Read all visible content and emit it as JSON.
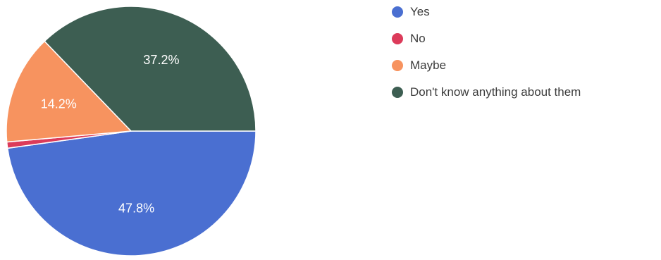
{
  "chart_data": {
    "type": "pie",
    "title": "",
    "legend_position": "right",
    "slices": [
      {
        "label": "Yes",
        "value": 47.8,
        "display": "47.8%",
        "color": "#4a6fd1"
      },
      {
        "label": "No",
        "value": 0.8,
        "display": "",
        "color": "#dc3b5a"
      },
      {
        "label": "Maybe",
        "value": 14.2,
        "display": "14.2%",
        "color": "#f7935f"
      },
      {
        "label": "Don't know anything about them",
        "value": 37.2,
        "display": "37.2%",
        "color": "#3d5e52"
      }
    ]
  }
}
